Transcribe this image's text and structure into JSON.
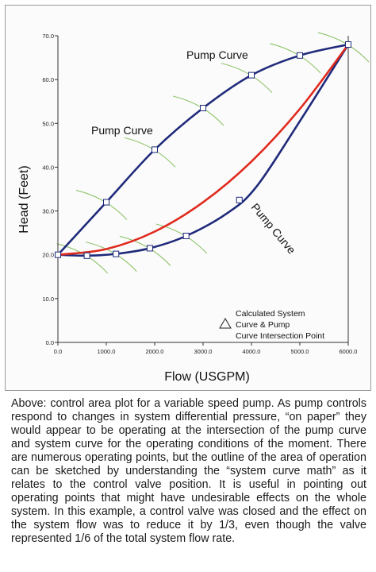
{
  "chart_data": {
    "type": "line",
    "xlabel": "Flow (USGPM)",
    "ylabel": "Head (Feet)",
    "xlim": [
      0,
      6000
    ],
    "ylim": [
      0,
      70
    ],
    "x_ticks": [
      "0.0",
      "1000.0",
      "2000.0",
      "3000.0",
      "4000.0",
      "5000.0",
      "6000.0"
    ],
    "y_ticks": [
      "0.0",
      "10.0",
      "20.0",
      "30.0",
      "40.0",
      "50.0",
      "60.0",
      "70.0"
    ],
    "grid": false,
    "series": [
      {
        "color": "#1f2a7a",
        "x": [
          0,
          1000,
          2000,
          3000,
          4000,
          5000,
          6000
        ],
        "y": [
          20,
          32,
          44,
          53.5,
          61,
          65.5,
          68
        ]
      },
      {
        "color": "#1f2a7a",
        "x": [
          0,
          600,
          1200,
          1900,
          2650,
          3500,
          4100,
          5000,
          6000
        ],
        "y": [
          20,
          19.8,
          20.2,
          21.5,
          24.3,
          29.5,
          35.5,
          50.5,
          68
        ]
      },
      {
        "color": "#e02a1e",
        "x": [
          0,
          1000,
          2000,
          3000,
          4000,
          5000,
          6000
        ],
        "y": [
          20,
          21.3,
          25.3,
          32,
          41.3,
          53.3,
          68
        ]
      }
    ],
    "intersection_points": [
      {
        "x": 0,
        "y": 20
      },
      {
        "x": 1000,
        "y": 32
      },
      {
        "x": 2000,
        "y": 44
      },
      {
        "x": 3000,
        "y": 53.5
      },
      {
        "x": 4000,
        "y": 61
      },
      {
        "x": 5000,
        "y": 65.5
      },
      {
        "x": 6000,
        "y": 68
      },
      {
        "x": 600,
        "y": 19.8
      },
      {
        "x": 1200,
        "y": 20.2
      },
      {
        "x": 1900,
        "y": 21.5
      },
      {
        "x": 2650,
        "y": 24.3
      },
      {
        "x": 3750,
        "y": 32.5
      }
    ],
    "annotations": [
      "Pump Curve",
      "Pump Curve",
      "Pump Curve"
    ],
    "legend": {
      "position": "bottom-right",
      "symbol": "triangle",
      "lines": [
        "Calculated System",
        "Curve & Pump",
        "Curve Intersection Point"
      ]
    },
    "colors": {
      "pump_curve": "#1f2a7a",
      "system_curve": "#e02a1e",
      "speed_arcs": "#8fc46a"
    }
  },
  "caption": "Above: control area plot for a variable speed pump. As pump controls respond to changes in system differential pressure, “on paper” they would appear to be operating at the intersection of the pump curve and system curve for the operating conditions of the moment. There are numerous operating points, but the outline of the area of operation can be sketched by understanding the “system curve math” as it relates to the control valve position.  It is useful in pointing out operating points that might have undesirable effects on the whole system.  In this example, a control valve was closed and the effect on the system flow was to reduce it by 1/3, even though the valve represented 1/6 of the total system flow rate."
}
